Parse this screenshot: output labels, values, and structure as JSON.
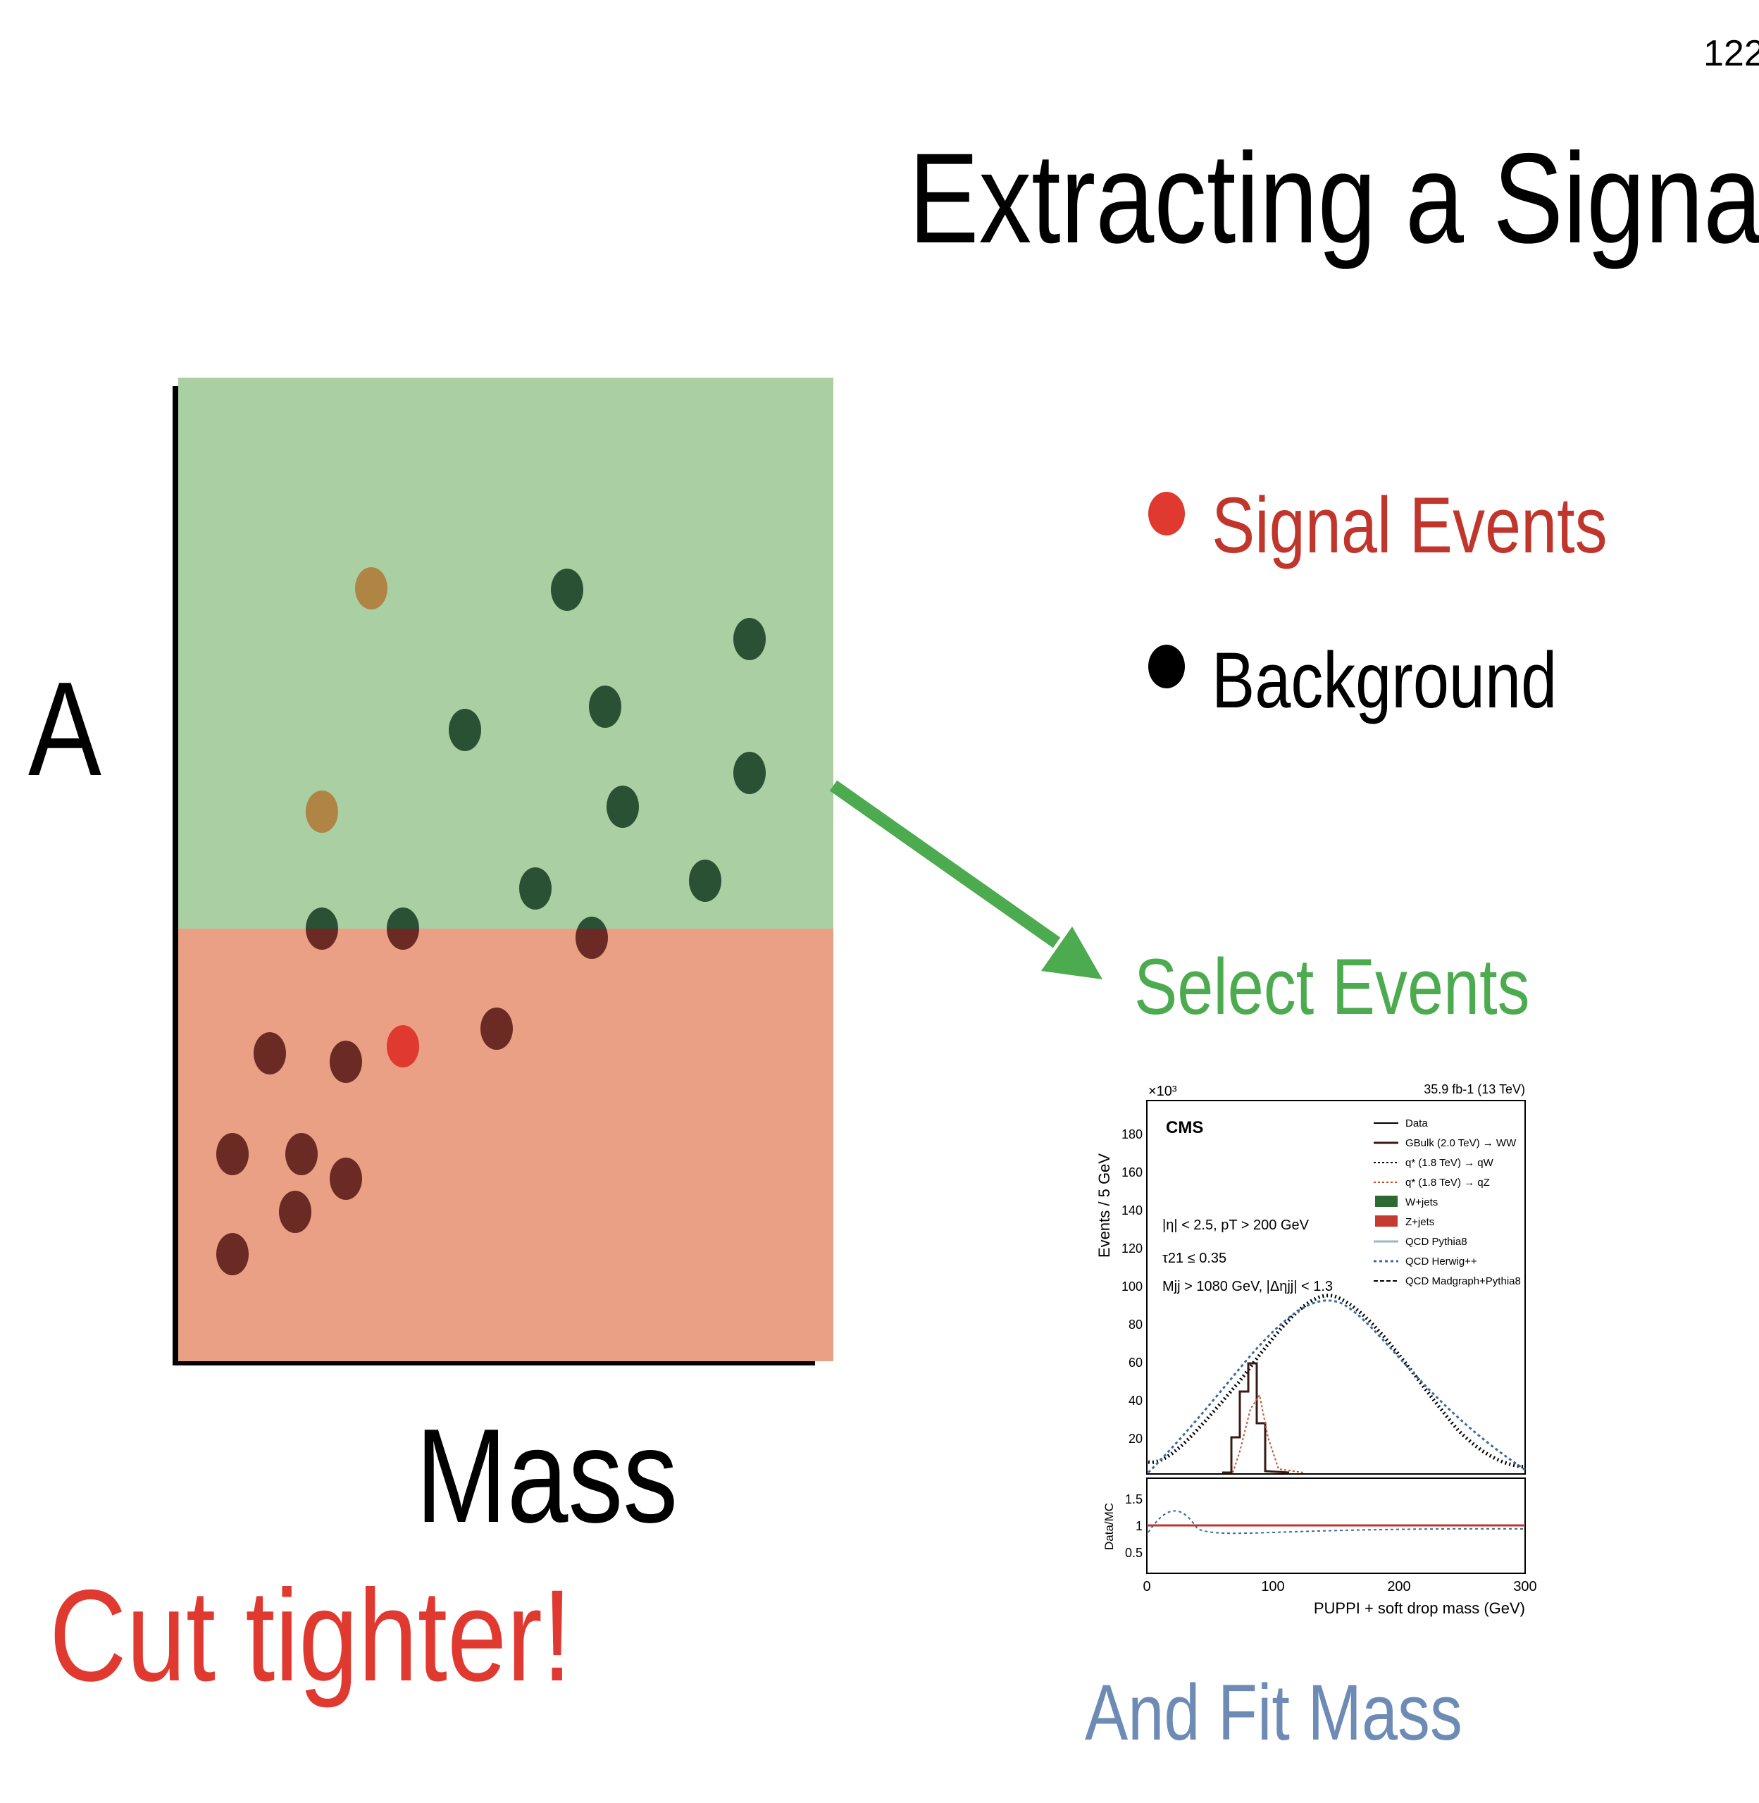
{
  "page_number": "122",
  "title": "Extracting a Signal",
  "axis_y_label": "A",
  "axis_x_label": "Mass",
  "cut_note": "Cut tighter!",
  "select_label": "Select Events",
  "fit_label": "And Fit Mass",
  "legend": [
    {
      "label": "Signal Events",
      "dot_color": "#e0392f",
      "text_color": "#c0362c"
    },
    {
      "label": "Background",
      "dot_color": "#000000",
      "text_color": "#000000"
    }
  ],
  "colors": {
    "selected_region": "#aacfa3",
    "rejected_region": "#e9a085",
    "background_in_selected": "#2a5134",
    "background_in_rejected": "#6b2a23",
    "signal_in_selected": "#b08445",
    "signal_in_rejected": "#e0392f",
    "arrow": "#4caa4f"
  },
  "cms_plot": {
    "lumi": "35.9 fb-1 (13 TeV)",
    "scale": "×10³",
    "experiment": "CMS",
    "ylabel": "Events / 5 GeV",
    "xlabel": "PUPPI + soft drop mass (GeV)",
    "ratio_label": "Data/MC",
    "y_ticks": [
      "20",
      "40",
      "60",
      "80",
      "100",
      "120",
      "140",
      "160",
      "180"
    ],
    "x_ticks": [
      "0",
      "100",
      "200",
      "300"
    ],
    "ratio_ticks": [
      "0.5",
      "1",
      "1.5"
    ],
    "cuts": [
      "|η| < 2.5, pT > 200 GeV",
      "τ21 ≤ 0.35",
      "Mjj > 1080 GeV, |Δηjj| < 1.3"
    ],
    "legend": [
      "Data",
      "GBulk (2.0 TeV) → WW",
      "q* (1.8 TeV) → qW",
      "q* (1.8 TeV) → qZ",
      "W+jets",
      "Z+jets",
      "QCD Pythia8",
      "QCD Herwig++",
      "QCD Madgraph+Pythia8"
    ]
  }
}
